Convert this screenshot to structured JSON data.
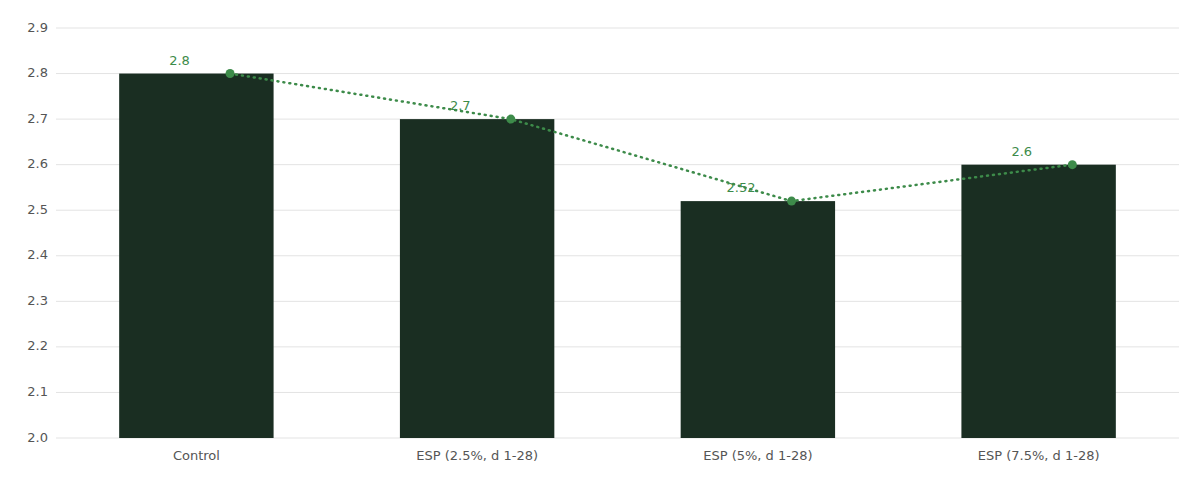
{
  "chart_data": {
    "type": "bar",
    "categories": [
      "Control",
      "ESP (2.5%, d 1-28)",
      "ESP (5%, d 1-28)",
      "ESP (7.5%, d 1-28)"
    ],
    "series": [
      {
        "type": "bar",
        "color": "#1a2e22",
        "values": [
          2.8,
          2.7,
          2.52,
          2.6
        ]
      },
      {
        "type": "line",
        "color": "#3d8b4a",
        "values": [
          2.8,
          2.7,
          2.52,
          2.6
        ],
        "marker": "circle",
        "line_style": "dotted"
      }
    ],
    "ylim": [
      2.0,
      2.9
    ],
    "yticks": [
      {
        "value": 2.0,
        "label": "2.0"
      },
      2.1,
      2.2,
      2.3,
      2.4,
      2.5,
      2.6,
      2.7,
      2.8,
      2.9
    ],
    "grid": true,
    "data_labels": true
  }
}
